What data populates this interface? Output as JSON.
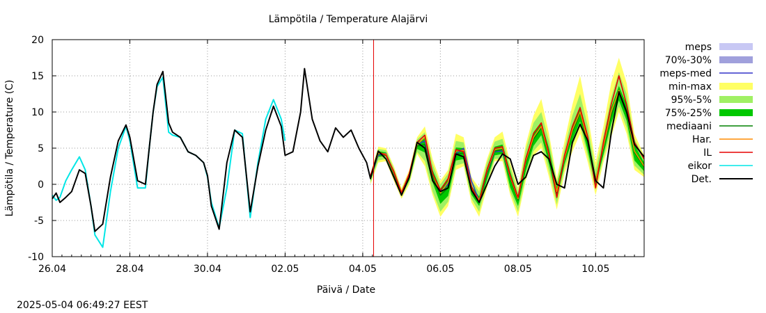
{
  "chart_data": {
    "type": "line",
    "title": "Lämpötila / Temperature   Alajärvi",
    "xlabel": "Päivä / Date",
    "ylabel": "Lämpötila / Temperature (C)",
    "ylim": [
      -10,
      20
    ],
    "xlim": [
      0,
      15.25
    ],
    "x_unit": "days since 26.04",
    "y_ticks": [
      "20",
      "15",
      "10",
      "5",
      "0",
      "-5",
      "-10"
    ],
    "x_ticks": [
      {
        "x": 0,
        "label": "26.04"
      },
      {
        "x": 2,
        "label": "28.04"
      },
      {
        "x": 4,
        "label": "30.04"
      },
      {
        "x": 6,
        "label": "02.05"
      },
      {
        "x": 8,
        "label": "04.05"
      },
      {
        "x": 10,
        "label": "06.05"
      },
      {
        "x": 12,
        "label": "08.05"
      },
      {
        "x": 14,
        "label": "10.05"
      }
    ],
    "grid": true,
    "now_line_x": 8.28,
    "timestamp": "2025-05-04 06:49:27 EEST",
    "legend": [
      {
        "label": "meps",
        "kind": "box",
        "color": "#c8c8f4"
      },
      {
        "label": "70%-30%",
        "kind": "box",
        "color": "#a0a0dc"
      },
      {
        "label": "meps-med",
        "kind": "line",
        "color": "#3232c8"
      },
      {
        "label": "min-max",
        "kind": "box",
        "color": "#ffff64"
      },
      {
        "label": "95%-5%",
        "kind": "box",
        "color": "#a0f064"
      },
      {
        "label": "75%-25%",
        "kind": "box",
        "color": "#00c800"
      },
      {
        "label": "mediaani",
        "kind": "line",
        "color": "#008000"
      },
      {
        "label": "Har.",
        "kind": "line",
        "color": "#ff8c00"
      },
      {
        "label": "IL",
        "kind": "line",
        "color": "#e60000"
      },
      {
        "label": "eikor",
        "kind": "line",
        "color": "#00e6e6"
      },
      {
        "label": "Det.",
        "kind": "line",
        "color": "#000000"
      }
    ],
    "series": [
      {
        "name": "eikor",
        "color": "#00e6e6",
        "x": [
          0,
          0.1,
          0.2,
          0.35,
          0.5,
          0.7,
          0.85,
          1.0,
          1.1,
          1.3,
          1.5,
          1.7,
          1.9,
          2.0,
          2.2,
          2.4,
          2.5,
          2.6,
          2.7,
          2.85,
          3.0,
          3.1,
          3.3,
          3.5,
          3.7,
          3.9,
          4.0,
          4.1,
          4.3,
          4.5,
          4.7,
          4.9,
          5.1,
          5.3,
          5.5,
          5.7,
          5.9,
          6.0
        ],
        "y": [
          -1.5,
          -2.2,
          -1.8,
          0.5,
          2.0,
          3.8,
          2.0,
          -3.0,
          -7.0,
          -8.7,
          -1.0,
          5.0,
          8.0,
          6.0,
          -0.5,
          -0.5,
          5.0,
          10.0,
          13.5,
          14.8,
          7.2,
          6.8,
          6.5,
          4.5,
          4.0,
          3.0,
          1.0,
          -2.5,
          -6.0,
          -0.5,
          7.5,
          7.0,
          -4.6,
          3.0,
          9.0,
          11.7,
          9.0,
          6.0
        ]
      },
      {
        "name": "min-max upper",
        "color": "#ffff64",
        "x": [
          8.2,
          8.4,
          8.6,
          8.8,
          9.0,
          9.2,
          9.4,
          9.6,
          9.8,
          10.0,
          10.2,
          10.4,
          10.6,
          10.8,
          11.0,
          11.2,
          11.4,
          11.6,
          11.8,
          12.0,
          12.2,
          12.4,
          12.6,
          12.8,
          13.0,
          13.2,
          13.4,
          13.6,
          13.8,
          14.0,
          14.2,
          14.4,
          14.6,
          14.8,
          15.0,
          15.25
        ],
        "y": [
          1.5,
          5.2,
          5.0,
          2.5,
          -0.5,
          2.0,
          6.5,
          8.0,
          3.5,
          0.5,
          2.0,
          7.0,
          6.5,
          1.0,
          -0.5,
          3.5,
          6.5,
          7.3,
          3.0,
          -0.5,
          5.5,
          9.5,
          11.8,
          7.0,
          0.8,
          6.0,
          11.0,
          15.0,
          9.5,
          3.0,
          8.0,
          14.0,
          17.5,
          14.0,
          7.0,
          4.0
        ]
      },
      {
        "name": "min-max lower",
        "color": "#ffff64",
        "x": [
          8.2,
          8.4,
          8.6,
          8.8,
          9.0,
          9.2,
          9.4,
          9.6,
          9.8,
          10.0,
          10.2,
          10.4,
          10.6,
          10.8,
          11.0,
          11.2,
          11.4,
          11.6,
          11.8,
          12.0,
          12.2,
          12.4,
          12.6,
          12.8,
          13.0,
          13.2,
          13.4,
          13.6,
          13.8,
          14.0,
          14.2,
          14.4,
          14.6,
          14.8,
          15.0,
          15.25
        ],
        "y": [
          0.0,
          3.0,
          3.2,
          0.5,
          -2.0,
          0.0,
          4.2,
          2.5,
          -1.5,
          -4.5,
          -3.0,
          2.0,
          2.5,
          -2.5,
          -4.5,
          -0.5,
          3.2,
          3.2,
          -1.5,
          -4.5,
          0.5,
          4.0,
          5.0,
          1.0,
          -3.5,
          1.5,
          4.5,
          7.0,
          3.0,
          -1.5,
          3.0,
          6.5,
          10.0,
          7.0,
          2.0,
          1.0
        ]
      },
      {
        "name": "95%-5% upper",
        "color": "#a0f064",
        "x": [
          8.2,
          8.4,
          8.6,
          8.8,
          9.0,
          9.2,
          9.4,
          9.6,
          9.8,
          10.0,
          10.2,
          10.4,
          10.6,
          10.8,
          11.0,
          11.2,
          11.4,
          11.6,
          11.8,
          12.0,
          12.2,
          12.4,
          12.6,
          12.8,
          13.0,
          13.2,
          13.4,
          13.6,
          13.8,
          14.0,
          14.2,
          14.4,
          14.6,
          14.8,
          15.0,
          15.25
        ],
        "y": [
          1.3,
          4.9,
          4.7,
          2.2,
          -0.8,
          1.7,
          6.2,
          7.2,
          2.8,
          0.0,
          1.5,
          6.0,
          5.8,
          0.5,
          -1.0,
          3.0,
          5.9,
          6.3,
          2.5,
          -1.0,
          4.8,
          8.5,
          10.0,
          6.0,
          0.3,
          5.0,
          9.5,
          12.5,
          8.0,
          2.0,
          6.8,
          12.0,
          15.5,
          12.5,
          6.3,
          3.7
        ]
      },
      {
        "name": "95%-5% lower",
        "color": "#a0f064",
        "x": [
          8.2,
          8.4,
          8.6,
          8.8,
          9.0,
          9.2,
          9.4,
          9.6,
          9.8,
          10.0,
          10.2,
          10.4,
          10.6,
          10.8,
          11.0,
          11.2,
          11.4,
          11.6,
          11.8,
          12.0,
          12.2,
          12.4,
          12.6,
          12.8,
          13.0,
          13.2,
          13.4,
          13.6,
          13.8,
          14.0,
          14.2,
          14.4,
          14.6,
          14.8,
          15.0,
          15.25
        ],
        "y": [
          0.2,
          3.3,
          3.5,
          0.8,
          -1.7,
          0.3,
          4.5,
          3.2,
          -1.0,
          -3.8,
          -2.4,
          2.6,
          2.9,
          -2.0,
          -3.8,
          0.0,
          3.5,
          3.6,
          -1.0,
          -3.8,
          1.0,
          4.6,
          5.8,
          1.8,
          -2.8,
          2.2,
          5.3,
          8.0,
          3.8,
          -0.8,
          3.6,
          7.2,
          10.8,
          7.8,
          2.6,
          1.3
        ]
      },
      {
        "name": "75%-25% upper",
        "color": "#00c800",
        "x": [
          8.2,
          8.4,
          8.6,
          8.8,
          9.0,
          9.2,
          9.4,
          9.6,
          9.8,
          10.0,
          10.2,
          10.4,
          10.6,
          10.8,
          11.0,
          11.2,
          11.4,
          11.6,
          11.8,
          12.0,
          12.2,
          12.4,
          12.6,
          12.8,
          13.0,
          13.2,
          13.4,
          13.6,
          13.8,
          14.0,
          14.2,
          14.4,
          14.6,
          14.8,
          15.0,
          15.25
        ],
        "y": [
          1.0,
          4.6,
          4.4,
          1.9,
          -1.1,
          1.3,
          5.8,
          6.4,
          2.0,
          -0.6,
          0.8,
          5.1,
          5.0,
          -0.2,
          -1.7,
          2.3,
          5.2,
          5.5,
          1.8,
          -1.6,
          3.8,
          7.2,
          8.6,
          5.0,
          -0.3,
          4.0,
          8.2,
          10.8,
          6.8,
          1.0,
          5.6,
          10.6,
          13.6,
          11.0,
          5.5,
          3.0
        ]
      },
      {
        "name": "75%-25% lower",
        "color": "#00c800",
        "x": [
          8.2,
          8.4,
          8.6,
          8.8,
          9.0,
          9.2,
          9.4,
          9.6,
          9.8,
          10.0,
          10.2,
          10.4,
          10.6,
          10.8,
          11.0,
          11.2,
          11.4,
          11.6,
          11.8,
          12.0,
          12.2,
          12.4,
          12.6,
          12.8,
          13.0,
          13.2,
          13.4,
          13.6,
          13.8,
          14.0,
          14.2,
          14.4,
          14.6,
          14.8,
          15.0,
          15.25
        ],
        "y": [
          0.5,
          3.8,
          3.9,
          1.2,
          -1.4,
          0.6,
          4.9,
          4.4,
          0.3,
          -2.7,
          -1.6,
          3.3,
          3.5,
          -1.4,
          -3.0,
          0.6,
          4.0,
          4.2,
          -0.4,
          -3.0,
          1.8,
          5.3,
          6.8,
          2.8,
          -2.0,
          2.8,
          6.1,
          8.7,
          4.6,
          -0.2,
          4.1,
          8.4,
          11.6,
          8.8,
          3.3,
          1.8
        ]
      },
      {
        "name": "meps-med",
        "color": "#3232c8",
        "x": [
          8.2,
          8.4,
          8.6,
          8.8,
          9.0,
          9.2,
          9.4,
          9.6,
          9.8,
          10.0,
          10.2,
          10.4,
          10.6,
          10.8,
          11.0,
          11.2,
          11.4,
          11.6,
          11.8,
          12.0
        ],
        "y": [
          0.8,
          4.0,
          4.3,
          1.5,
          -1.3,
          1.0,
          5.5,
          6.0,
          1.5,
          -1.0,
          0.0,
          4.2,
          5.0,
          0.5,
          -2.3,
          1.4,
          4.5,
          4.6,
          0.8,
          -1.8
        ]
      },
      {
        "name": "mediaani",
        "color": "#008000",
        "x": [
          8.2,
          8.4,
          8.6,
          8.8,
          9.0,
          9.2,
          9.4,
          9.6,
          9.8,
          10.0,
          10.2,
          10.4,
          10.6,
          10.8,
          11.0,
          11.2,
          11.4,
          11.6,
          11.8,
          12.0,
          12.2,
          12.4,
          12.6,
          12.8,
          13.0,
          13.2,
          13.4,
          13.6,
          13.8,
          14.0,
          14.2,
          14.4,
          14.6,
          14.8,
          15.0,
          15.25
        ],
        "y": [
          0.8,
          4.2,
          4.2,
          1.5,
          -1.2,
          1.0,
          5.3,
          5.5,
          1.0,
          -1.5,
          -0.5,
          4.2,
          4.3,
          -0.8,
          -2.4,
          1.5,
          4.6,
          4.8,
          0.8,
          -2.2,
          2.8,
          6.2,
          7.8,
          3.8,
          -1.2,
          3.4,
          7.2,
          9.8,
          5.7,
          0.4,
          4.9,
          9.5,
          12.6,
          9.8,
          4.4,
          2.4
        ]
      },
      {
        "name": "Har.",
        "color": "#ff8c00",
        "x": [
          8.2,
          8.4,
          8.6,
          8.8,
          9.0,
          9.2,
          9.4,
          9.6,
          9.8,
          10.0,
          10.2,
          10.4,
          10.6,
          10.8,
          11.0,
          11.2,
          11.4,
          11.6,
          11.8,
          12.0,
          12.2,
          12.4,
          12.6,
          12.8,
          13.0,
          13.2,
          13.4,
          13.6,
          13.8,
          14.0,
          14.2,
          14.4,
          14.6,
          14.8,
          15.0,
          15.25
        ],
        "y": [
          1.0,
          4.3,
          4.2,
          1.6,
          -1.0,
          1.2,
          5.5,
          6.5,
          1.5,
          -1.2,
          0.3,
          4.6,
          4.7,
          -0.5,
          -2.2,
          1.8,
          4.8,
          5.0,
          1.0,
          -2.0,
          3.2,
          6.5,
          8.0,
          4.0,
          -1.0,
          3.6,
          7.5,
          10.0,
          6.0,
          0.6,
          5.2,
          10.0,
          13.0,
          10.0,
          4.6,
          2.5
        ]
      },
      {
        "name": "IL",
        "color": "#e60000",
        "x": [
          8.2,
          8.4,
          8.6,
          8.8,
          9.0,
          9.2,
          9.4,
          9.6,
          9.8,
          10.0,
          10.2,
          10.4,
          10.6,
          10.8,
          11.0,
          11.2,
          11.4,
          11.6,
          11.8,
          12.0,
          12.2,
          12.4,
          12.6,
          12.8,
          13.0,
          13.2,
          13.4,
          13.6,
          13.8,
          14.0,
          14.2,
          14.4,
          14.6,
          14.8,
          15.0,
          15.25
        ],
        "y": [
          1.2,
          4.5,
          4.0,
          1.8,
          -1.2,
          1.5,
          5.8,
          6.8,
          1.5,
          -0.8,
          0.8,
          4.8,
          4.5,
          -0.3,
          -2.5,
          2.0,
          5.0,
          5.2,
          1.2,
          -1.8,
          3.5,
          7.0,
          8.5,
          4.2,
          -1.8,
          4.0,
          8.0,
          10.6,
          6.5,
          -0.5,
          5.8,
          11.0,
          15.0,
          11.0,
          5.8,
          3.5
        ]
      },
      {
        "name": "Det.",
        "color": "#000000",
        "x": [
          0,
          0.1,
          0.2,
          0.35,
          0.5,
          0.7,
          0.85,
          1.0,
          1.1,
          1.3,
          1.5,
          1.7,
          1.9,
          2.0,
          2.2,
          2.4,
          2.5,
          2.6,
          2.7,
          2.85,
          3.0,
          3.1,
          3.3,
          3.5,
          3.7,
          3.9,
          4.0,
          4.1,
          4.3,
          4.5,
          4.7,
          4.9,
          5.1,
          5.3,
          5.5,
          5.7,
          5.9,
          6.0,
          6.2,
          6.4,
          6.5,
          6.7,
          6.9,
          7.1,
          7.3,
          7.5,
          7.7,
          7.9,
          8.1,
          8.2,
          8.4,
          8.6,
          8.8,
          9.0,
          9.2,
          9.4,
          9.6,
          9.8,
          10.0,
          10.2,
          10.4,
          10.6,
          10.8,
          11.0,
          11.2,
          11.4,
          11.6,
          11.8,
          12.0,
          12.2,
          12.4,
          12.6,
          12.8,
          13.0,
          13.2,
          13.4,
          13.6,
          13.8,
          14.0,
          14.2,
          14.4,
          14.6,
          14.8,
          15.0,
          15.25
        ],
        "y": [
          -2.0,
          -1.2,
          -2.5,
          -1.8,
          -1.0,
          2.0,
          1.5,
          -3.0,
          -6.5,
          -5.5,
          1.0,
          6.0,
          8.2,
          6.5,
          0.5,
          0.0,
          5.0,
          10.0,
          13.8,
          15.6,
          8.5,
          7.2,
          6.5,
          4.5,
          4.0,
          3.0,
          1.2,
          -3.0,
          -6.2,
          3.0,
          7.5,
          6.5,
          -3.8,
          2.5,
          7.5,
          10.8,
          8.0,
          4.0,
          4.5,
          10.0,
          16.0,
          9.0,
          6.0,
          4.5,
          7.8,
          6.5,
          7.5,
          5.0,
          3.0,
          0.8,
          4.6,
          3.5,
          1.0,
          -1.5,
          1.0,
          5.8,
          5.0,
          0.5,
          -1.0,
          -0.5,
          4.2,
          3.8,
          -0.8,
          -2.5,
          0.0,
          2.5,
          4.2,
          3.5,
          0.0,
          1.0,
          4.0,
          4.5,
          3.5,
          0.0,
          -0.5,
          5.8,
          8.3,
          6.0,
          0.5,
          -0.5,
          7.0,
          12.8,
          10.0,
          5.5,
          3.8
        ]
      }
    ]
  }
}
